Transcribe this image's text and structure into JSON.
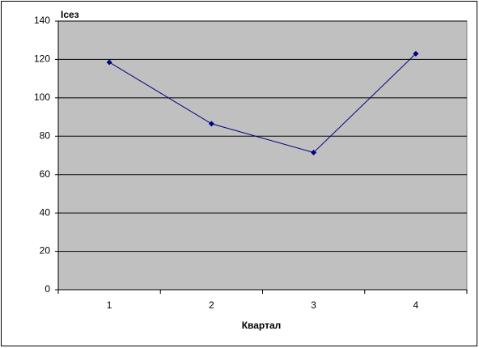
{
  "chart_data": {
    "type": "line",
    "y_label": "Iсез",
    "x_label": "Квартал",
    "categories": [
      "1",
      "2",
      "3",
      "4"
    ],
    "series": [
      {
        "name": "Iсез",
        "color": "#000080",
        "values": [
          118.5,
          86.5,
          71.5,
          123
        ]
      }
    ],
    "ylim": [
      0,
      140
    ],
    "yticks": [
      0,
      20,
      40,
      60,
      80,
      100,
      120,
      140
    ],
    "grid": true,
    "plot_color": "#c0c0c0"
  }
}
